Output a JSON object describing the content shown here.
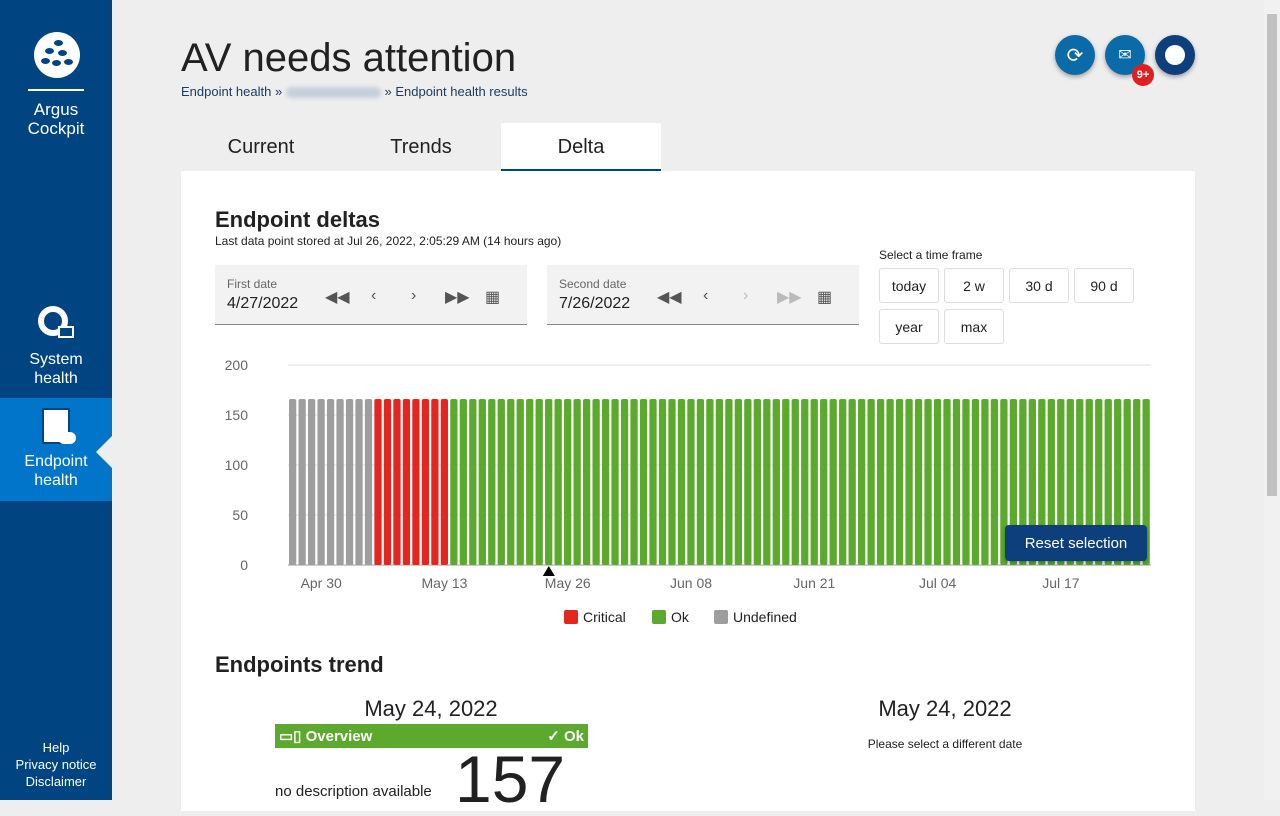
{
  "sidebar": {
    "brand_line1": "Argus",
    "brand_line2": "Cockpit",
    "items": [
      {
        "line1": "System",
        "line2": "health",
        "icon": "system-health-icon"
      },
      {
        "line1": "Endpoint",
        "line2": "health",
        "icon": "endpoint-health-icon",
        "active": true
      }
    ],
    "footer": [
      "Help",
      "Privacy notice",
      "Disclaimer"
    ]
  },
  "header": {
    "title": "AV needs attention",
    "breadcrumb": [
      "Endpoint health",
      "»",
      "»",
      "Endpoint health results"
    ],
    "notification_badge": "9+"
  },
  "tabs": [
    "Current",
    "Trends",
    "Delta"
  ],
  "deltas": {
    "title": "Endpoint deltas",
    "subtitle": "Last data point stored at Jul 26, 2022, 2:05:29 AM (14 hours ago)",
    "first_date": {
      "label": "First date",
      "value": "4/27/2022"
    },
    "second_date": {
      "label": "Second date",
      "value": "7/26/2022"
    },
    "timeframe_label": "Select a time frame",
    "timeframes": [
      "today",
      "2 w",
      "30 d",
      "90 d",
      "year",
      "max"
    ],
    "reset_label": "Reset selection"
  },
  "chart_data": {
    "type": "bar",
    "stacked": true,
    "start_date": "2022-04-27",
    "end_date": "2022-07-26",
    "ylim": [
      0,
      200
    ],
    "yticks": [
      "200",
      "150",
      "100",
      "50",
      "0"
    ],
    "xticks": [
      "Apr 30",
      "May 13",
      "May 26",
      "Jun 08",
      "Jun 21",
      "Jul 04",
      "Jul 17"
    ],
    "segments": [
      {
        "name": "Undefined",
        "days": 9,
        "value": 166
      },
      {
        "name": "Critical",
        "days": 8,
        "value": 166
      },
      {
        "name": "Ok",
        "days": 74,
        "value": 166
      }
    ],
    "selected_date": "May 24",
    "legend": [
      {
        "name": "Critical",
        "color": "#e3261f"
      },
      {
        "name": "Ok",
        "color": "#5baa2d"
      },
      {
        "name": "Undefined",
        "color": "#9e9e9e"
      }
    ],
    "grid": true,
    "legend_position": "bottom"
  },
  "trend": {
    "title": "Endpoints trend",
    "left_date": "May 24, 2022",
    "overview": "Overview",
    "status": "Ok",
    "description": "no description available",
    "count": "157",
    "right_date": "May 24, 2022",
    "right_msg": "Please select a different date"
  }
}
